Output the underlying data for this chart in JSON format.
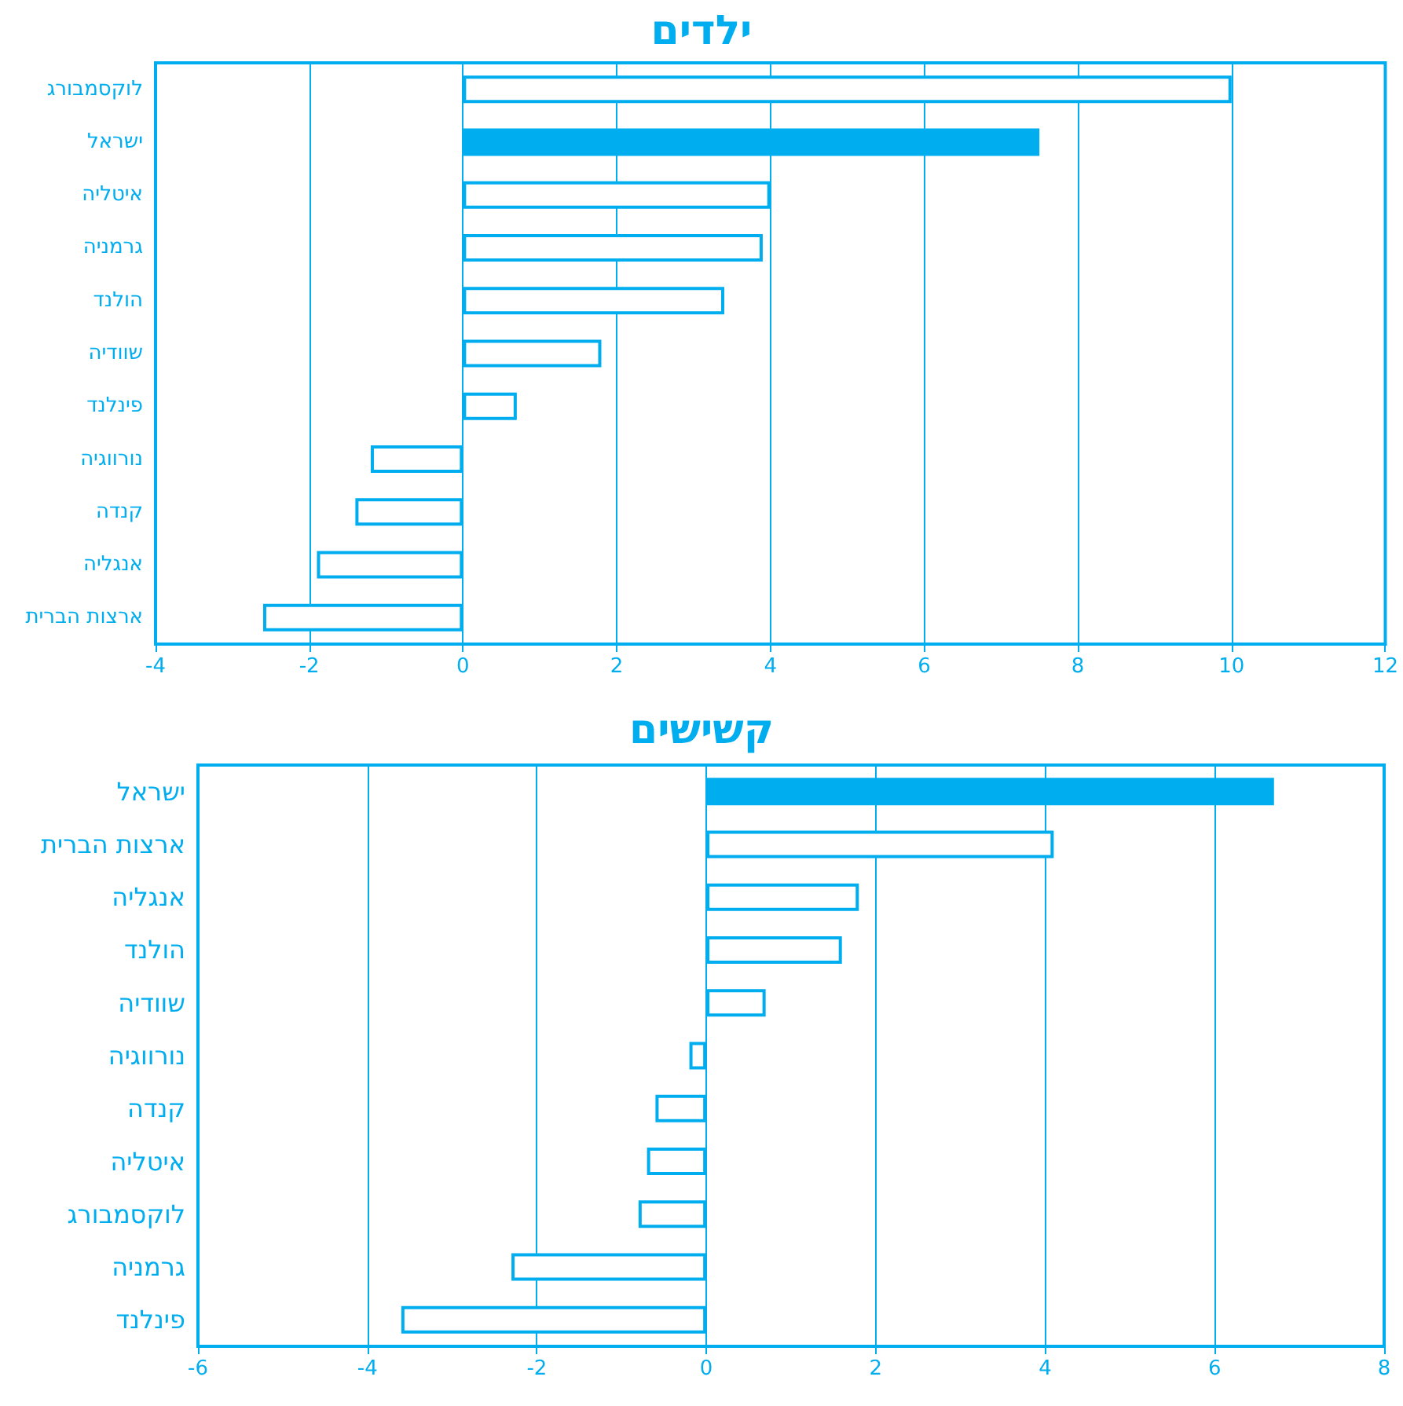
{
  "chart_data": [
    {
      "type": "bar",
      "orientation": "horizontal",
      "title": "ילדים",
      "categories": [
        "לוקסמבורג",
        "ישראל",
        "איטליה",
        "גרמניה",
        "הולנד",
        "שוודיה",
        "פינלנד",
        "נורווגיה",
        "קנדה",
        "אנגליה",
        "ארצות הברית"
      ],
      "values": [
        10.0,
        7.5,
        4.0,
        3.9,
        3.4,
        1.8,
        0.7,
        -1.2,
        -1.4,
        -1.9,
        -2.6
      ],
      "color": "#00aeef",
      "colors": [
        "#ffffff",
        "#00aeef",
        "#ffffff",
        "#ffffff",
        "#ffffff",
        "#ffffff",
        "#ffffff",
        "#ffffff",
        "#ffffff",
        "#ffffff",
        "#ffffff"
      ],
      "xlim": [
        -4,
        12
      ],
      "xticks": [
        -4,
        -2,
        0,
        2,
        4,
        6,
        8,
        10,
        12
      ],
      "grid": "x"
    },
    {
      "type": "bar",
      "orientation": "horizontal",
      "title": "קשישים",
      "categories": [
        "ישראל",
        "ארצות הברית",
        "אנגליה",
        "הולנד",
        "שוודיה",
        "נורווגיה",
        "קנדה",
        "איטליה",
        "לוקסמבורג",
        "גרמניה",
        "פינלנד"
      ],
      "values": [
        6.7,
        4.1,
        1.8,
        1.6,
        0.7,
        -0.2,
        -0.6,
        -0.7,
        -0.8,
        -2.3,
        -3.6
      ],
      "color": "#00aeef",
      "colors": [
        "#00aeef",
        "#ffffff",
        "#ffffff",
        "#ffffff",
        "#ffffff",
        "#ffffff",
        "#ffffff",
        "#ffffff",
        "#ffffff",
        "#ffffff",
        "#ffffff"
      ],
      "xlim": [
        -6,
        8
      ],
      "xticks": [
        -6,
        -4,
        -2,
        0,
        2,
        4,
        6,
        8
      ],
      "grid": "x"
    }
  ]
}
